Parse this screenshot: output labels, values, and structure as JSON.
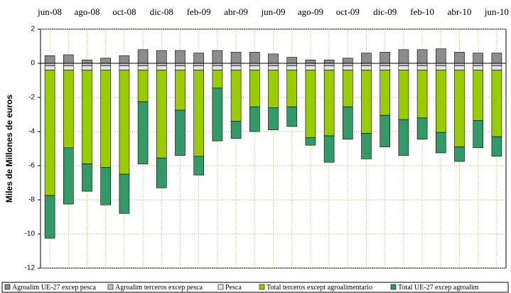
{
  "chart_data": {
    "type": "bar",
    "stacked": true,
    "y_label": "Miles de Millones de euros",
    "categories": [
      "jun-08",
      null,
      "ago-08",
      null,
      "oct-08",
      null,
      "dic-08",
      null,
      "feb-09",
      null,
      "abr-09",
      null,
      "jun-09",
      null,
      "ago-09",
      null,
      "oct-09",
      null,
      "dic-09",
      null,
      "feb-10",
      null,
      "abr-10",
      null,
      "jun-10"
    ],
    "ylim": [
      -12,
      2
    ],
    "yticks": [
      -12,
      -10,
      -8,
      -6,
      -4,
      -2,
      0,
      2
    ],
    "grid": true,
    "legend": "bottom",
    "series": [
      {
        "name": "Agroalim UE-27 excep pesca",
        "color": "#8c8c8c",
        "values": [
          0.45,
          0.5,
          0.2,
          0.3,
          0.45,
          0.8,
          0.75,
          0.75,
          0.6,
          0.75,
          0.65,
          0.65,
          0.55,
          0.35,
          0.2,
          0.2,
          0.3,
          0.6,
          0.65,
          0.8,
          0.8,
          0.85,
          0.65,
          0.6,
          0.6
        ]
      },
      {
        "name": "Agroalim terceros excep pesca",
        "color": "#c0c0c0",
        "values": [
          -0.15,
          -0.15,
          -0.15,
          -0.15,
          -0.15,
          -0.15,
          -0.15,
          -0.15,
          -0.15,
          -0.15,
          -0.15,
          -0.15,
          -0.15,
          -0.15,
          -0.15,
          -0.15,
          -0.15,
          -0.15,
          -0.15,
          -0.15,
          -0.15,
          -0.15,
          -0.15,
          -0.15,
          -0.15
        ]
      },
      {
        "name": "Pesca",
        "color": "#e6e6e6",
        "values": [
          -0.25,
          -0.25,
          -0.25,
          -0.25,
          -0.25,
          -0.25,
          -0.25,
          -0.25,
          -0.25,
          -0.25,
          -0.25,
          -0.25,
          -0.25,
          -0.25,
          -0.25,
          -0.25,
          -0.25,
          -0.25,
          -0.25,
          -0.25,
          -0.25,
          -0.25,
          -0.25,
          -0.25,
          -0.25
        ]
      },
      {
        "name": "Total terceros except agroalimentario",
        "color": "#99cc00",
        "values": [
          -7.35,
          -4.55,
          -5.5,
          -5.7,
          -6.1,
          -1.85,
          -5.15,
          -2.35,
          -5.05,
          -1.05,
          -3.0,
          -2.15,
          -2.2,
          -2.15,
          -3.95,
          -3.85,
          -2.15,
          -3.7,
          -2.65,
          -2.9,
          -2.8,
          -3.65,
          -4.5,
          -2.95,
          -3.9
        ]
      },
      {
        "name": "Total UE-27 excep agroalim",
        "color": "#339966",
        "values": [
          -2.5,
          -3.3,
          -1.6,
          -2.2,
          -2.3,
          -3.65,
          -1.75,
          -2.65,
          -1.1,
          -3.1,
          -1.0,
          -1.45,
          -1.3,
          -1.15,
          -0.45,
          -1.55,
          -1.9,
          -1.5,
          -1.85,
          -2.1,
          -1.25,
          -1.2,
          -0.85,
          -1.6,
          -1.15
        ]
      }
    ]
  }
}
